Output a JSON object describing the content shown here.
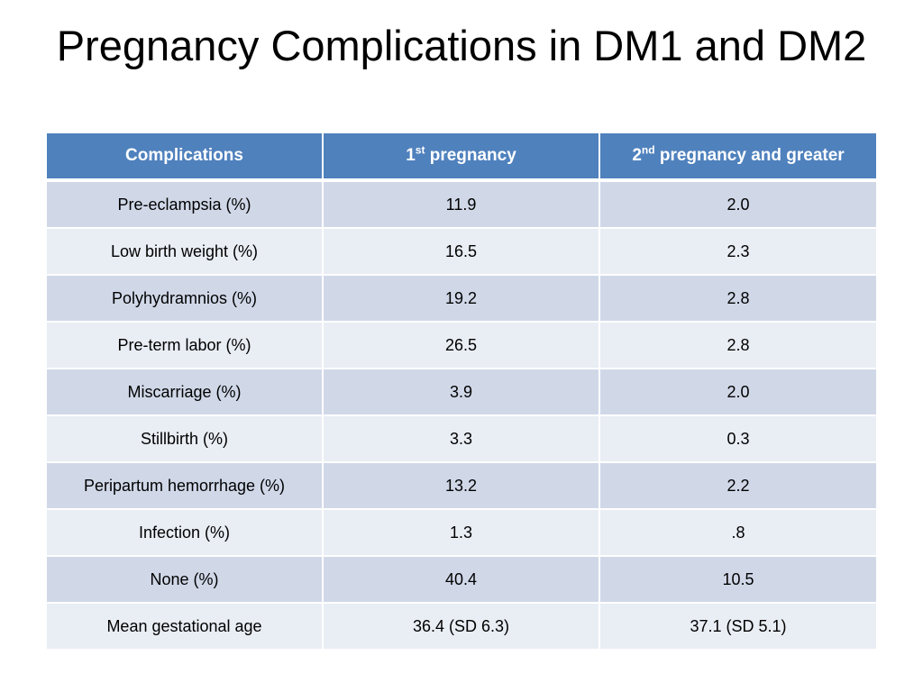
{
  "slide": {
    "title": "Pregnancy Complications in DM1 and DM2"
  },
  "table": {
    "headers": {
      "col1": "Complications",
      "col2_num": "1",
      "col2_sup": "st",
      "col2_rest": " pregnancy",
      "col3_num": "2",
      "col3_sup": "nd",
      "col3_rest": " pregnancy and greater"
    },
    "rows": [
      {
        "label": "Pre-eclampsia (%)",
        "first": "11.9",
        "second": "2.0"
      },
      {
        "label": "Low birth weight (%)",
        "first": "16.5",
        "second": "2.3"
      },
      {
        "label": "Polyhydramnios (%)",
        "first": "19.2",
        "second": "2.8"
      },
      {
        "label": "Pre-term labor (%)",
        "first": "26.5",
        "second": "2.8"
      },
      {
        "label": "Miscarriage (%)",
        "first": "3.9",
        "second": "2.0"
      },
      {
        "label": "Stillbirth (%)",
        "first": "3.3",
        "second": "0.3"
      },
      {
        "label": "Peripartum hemorrhage (%)",
        "first": "13.2",
        "second": "2.2"
      },
      {
        "label": "Infection (%)",
        "first": "1.3",
        "second": ".8"
      },
      {
        "label": "None (%)",
        "first": "40.4",
        "second": "10.5"
      },
      {
        "label": "Mean gestational age",
        "first": "36.4 (SD 6.3)",
        "second": "37.1 (SD 5.1)"
      }
    ],
    "colors": {
      "header": "#4f81bd",
      "row_dark": "#d0d8e8",
      "row_light": "#e9edf4"
    }
  }
}
